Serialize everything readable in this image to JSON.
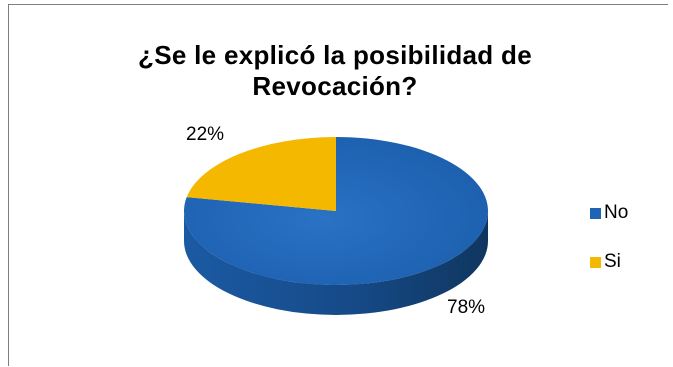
{
  "chart_data": {
    "type": "pie",
    "title_line1": "¿Se le explicó la posibilidad de",
    "title_line2": "Revocación?",
    "categories": [
      "No",
      "Si"
    ],
    "values": [
      78,
      22
    ],
    "data_labels": [
      "78%",
      "22%"
    ],
    "colors": [
      "#1F64B4",
      "#F5B800"
    ],
    "side_colors": [
      "#17487F",
      "#A67D00"
    ],
    "legend_position": "right",
    "style": "3d"
  }
}
